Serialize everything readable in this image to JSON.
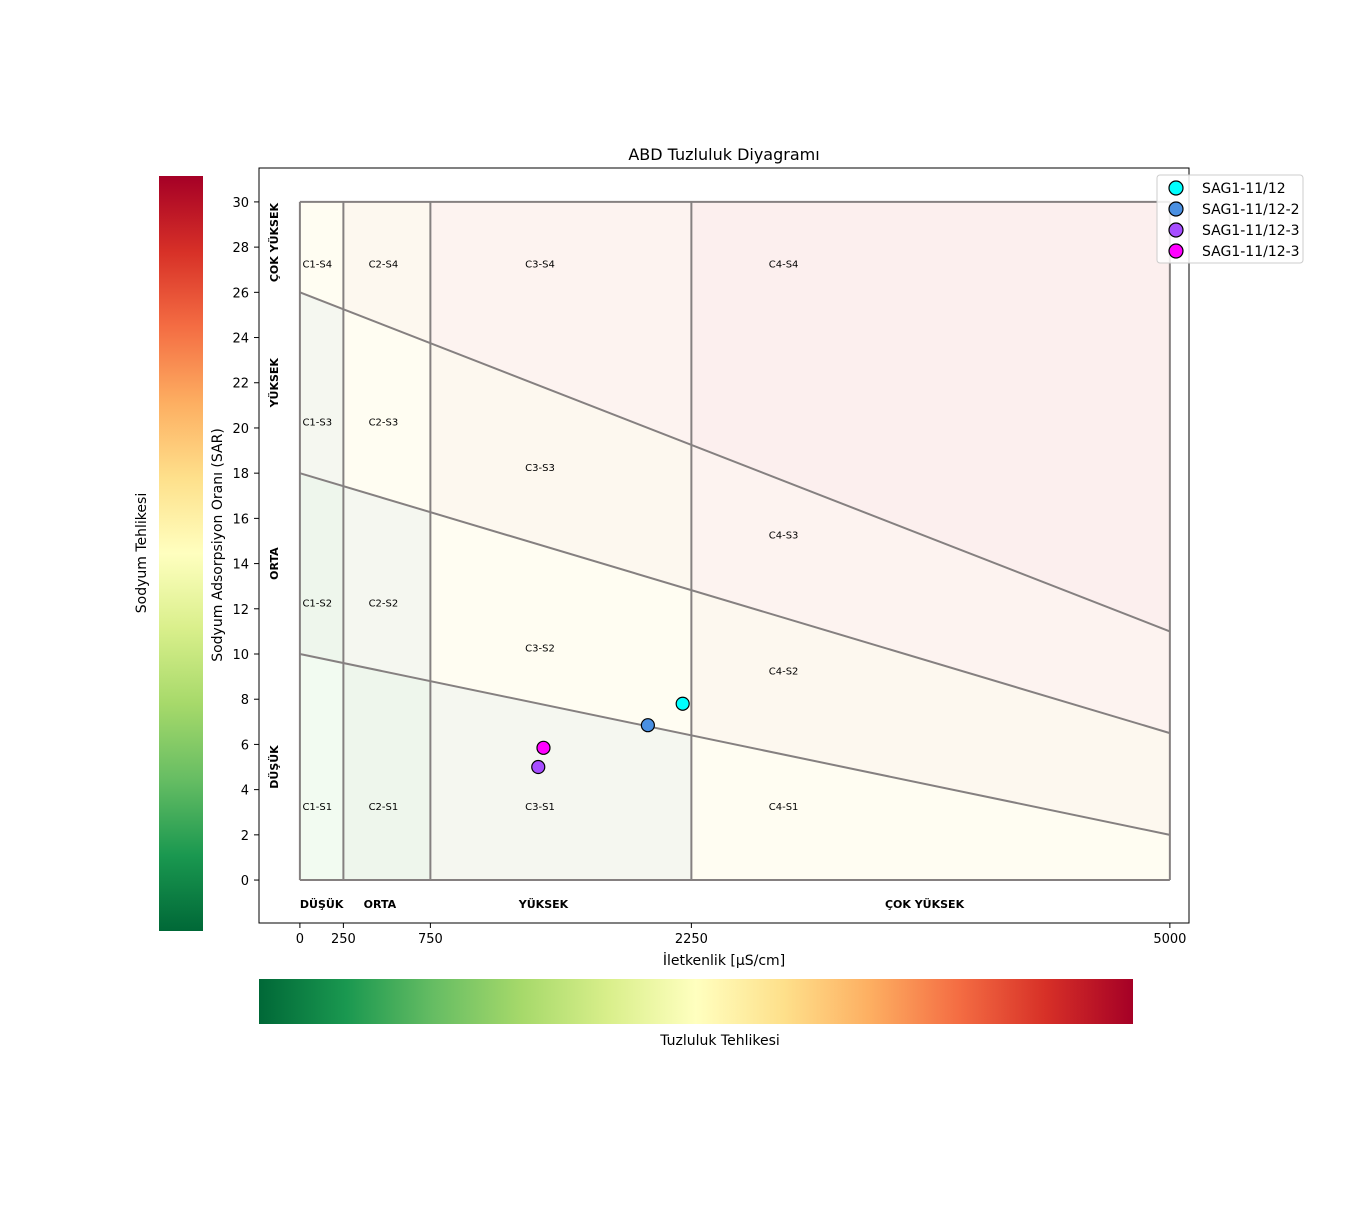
{
  "chart_data": {
    "type": "scatter",
    "title": "ABD Tuzluluk Diyagramı",
    "xlabel": "İletkenlik [µS/cm]",
    "ylabel": "Sodyum Adsorpsiyon Oranı (SAR)",
    "xlim": [
      -235,
      5110
    ],
    "ylim": [
      -1.9,
      31.5
    ],
    "x_ticks": [
      0,
      250,
      750,
      2250,
      5000
    ],
    "y_ticks": [
      0,
      2,
      4,
      6,
      8,
      10,
      12,
      14,
      16,
      18,
      20,
      22,
      24,
      26,
      28,
      30
    ],
    "grid": false,
    "legend_position": "top-right",
    "salinity_classes": [
      {
        "label": "DÜŞÜK",
        "x": 125
      },
      {
        "label": "ORTA",
        "x": 460
      },
      {
        "label": "YÜKSEK",
        "x": 1400
      },
      {
        "label": "ÇOK YÜKSEK",
        "x": 3590
      }
    ],
    "sodium_classes": [
      {
        "label": "DÜŞÜK",
        "y": 5
      },
      {
        "label": "ORTA",
        "y": 14
      },
      {
        "label": "YÜKSEK",
        "y": 22
      },
      {
        "label": "ÇOK YÜKSEK",
        "y": 28.2
      }
    ],
    "region_labels": [
      {
        "label": "C1-S4",
        "x": 100,
        "y": 27.1
      },
      {
        "label": "C2-S4",
        "x": 480,
        "y": 27.1
      },
      {
        "label": "C3-S4",
        "x": 1380,
        "y": 27.1
      },
      {
        "label": "C4-S4",
        "x": 2780,
        "y": 27.1
      },
      {
        "label": "C1-S3",
        "x": 100,
        "y": 20.1
      },
      {
        "label": "C2-S3",
        "x": 480,
        "y": 20.1
      },
      {
        "label": "C3-S3",
        "x": 1380,
        "y": 18.1
      },
      {
        "label": "C4-S3",
        "x": 2780,
        "y": 15.1
      },
      {
        "label": "C1-S2",
        "x": 100,
        "y": 12.1
      },
      {
        "label": "C2-S2",
        "x": 480,
        "y": 12.1
      },
      {
        "label": "C3-S2",
        "x": 1380,
        "y": 10.1
      },
      {
        "label": "C4-S2",
        "x": 2780,
        "y": 9.1
      },
      {
        "label": "C1-S1",
        "x": 100,
        "y": 3.1
      },
      {
        "label": "C2-S1",
        "x": 480,
        "y": 3.1
      },
      {
        "label": "C3-S1",
        "x": 1380,
        "y": 3.1
      },
      {
        "label": "C4-S1",
        "x": 2780,
        "y": 3.1
      }
    ],
    "boundaries": {
      "vertical_x": [
        0,
        250,
        750,
        2250,
        5000
      ],
      "sloped_lines": [
        {
          "x": [
            0,
            5000
          ],
          "y": [
            10,
            2
          ]
        },
        {
          "x": [
            0,
            5000
          ],
          "y": [
            18,
            6.5
          ]
        },
        {
          "x": [
            0,
            5000
          ],
          "y": [
            26,
            11
          ]
        }
      ],
      "top_y": 30,
      "bottom_y": 0
    },
    "series": [
      {
        "name": "SAG1-11/12",
        "x": [
          2200
        ],
        "y": [
          7.8
        ],
        "color": "#00ffff"
      },
      {
        "name": "SAG1-11/12-2",
        "x": [
          2000
        ],
        "y": [
          6.85
        ],
        "color": "#4a90e2"
      },
      {
        "name": "SAG1-11/12-3",
        "x": [
          1370
        ],
        "y": [
          5.0
        ],
        "color": "#a64dff"
      },
      {
        "name": "SAG1-11/12-3",
        "x": [
          1400
        ],
        "y": [
          5.85
        ],
        "color": "#ff00ff"
      }
    ],
    "colorbars": [
      {
        "label": "Sodyum Tehlikesi",
        "orientation": "vertical",
        "colormap": "RdYlGn_r"
      },
      {
        "label": "Tuzluluk Tehlikesi",
        "orientation": "horizontal",
        "colormap": "RdYlGn_r"
      }
    ],
    "colormap_stops": [
      "#006837",
      "#1a9850",
      "#66bd63",
      "#a6d96a",
      "#d9ef8b",
      "#ffffbf",
      "#fee08b",
      "#fdae61",
      "#f46d43",
      "#d73027",
      "#a50026"
    ]
  }
}
